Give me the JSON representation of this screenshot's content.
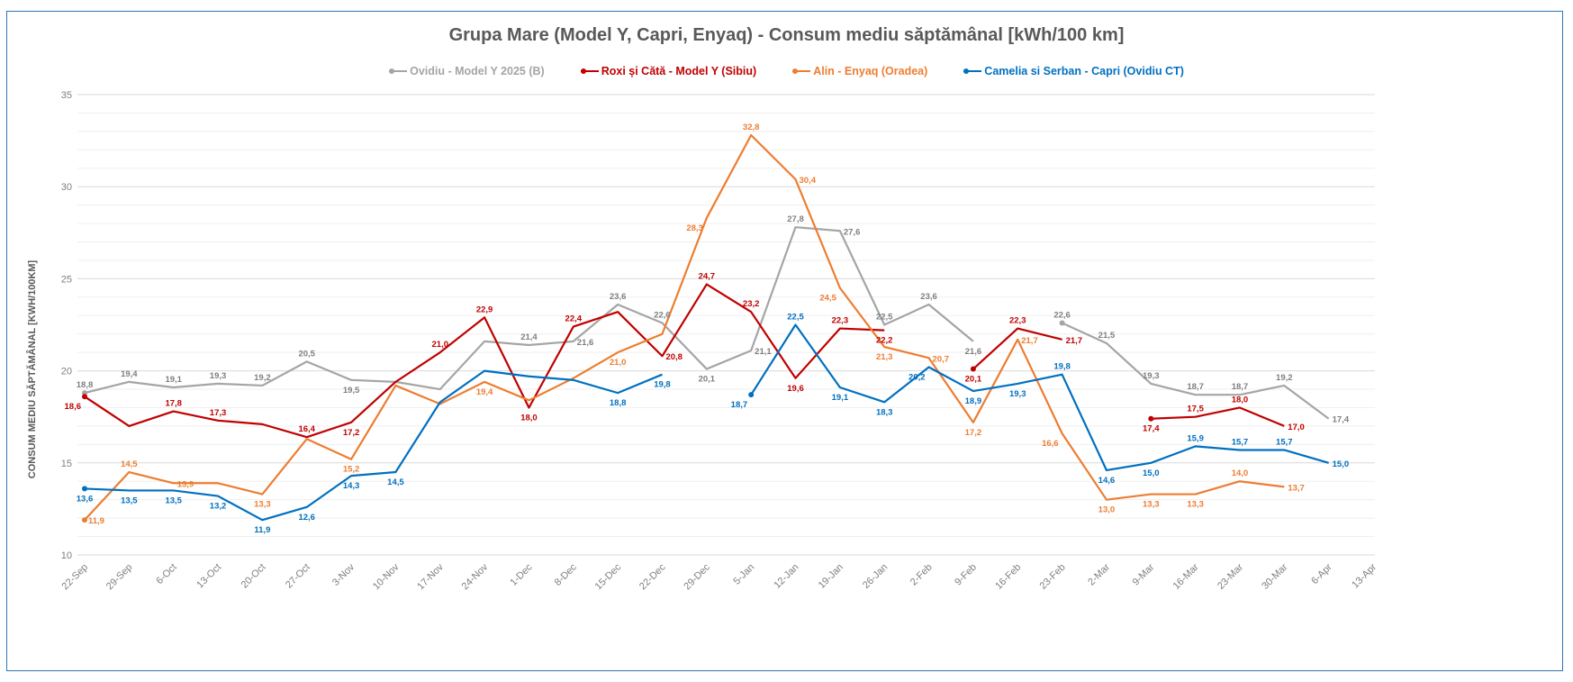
{
  "chart_data": {
    "type": "line",
    "title": "Grupa Mare (Model Y, Capri, Enyaq) - Consum mediu săptămânal [kWh/100 km]",
    "xlabel": "",
    "ylabel": "CONSUM MEDIU SĂPTĂMÂNAL [KWH/100KM]",
    "ylim": [
      10,
      35
    ],
    "yticks": [
      "10",
      "15",
      "20",
      "25",
      "30",
      "35"
    ],
    "ytick_values": [
      10,
      15,
      20,
      25,
      30,
      35
    ],
    "minor_grid_step": 1,
    "grid": true,
    "legend_position": "top",
    "categories": [
      "22-Sep",
      "29-Sep",
      "6-Oct",
      "13-Oct",
      "20-Oct",
      "27-Oct",
      "3-Nov",
      "10-Nov",
      "17-Nov",
      "24-Nov",
      "1-Dec",
      "8-Dec",
      "15-Dec",
      "22-Dec",
      "29-Dec",
      "5-Jan",
      "12-Jan",
      "19-Jan",
      "26-Jan",
      "2-Feb",
      "9-Feb",
      "16-Feb",
      "23-Feb",
      "2-Mar",
      "9-Mar",
      "16-Mar",
      "23-Mar",
      "30-Mar",
      "6-Apr",
      "13-Apr"
    ],
    "series": [
      {
        "name": "Ovidiu - Model Y 2025 (B)",
        "color": "#a5a5a5",
        "label_color": "#7f7f7f",
        "values": [
          18.8,
          19.4,
          19.1,
          19.3,
          19.2,
          20.5,
          19.5,
          19.4,
          19.0,
          21.6,
          21.4,
          21.6,
          23.6,
          22.6,
          20.1,
          21.1,
          27.8,
          27.6,
          22.5,
          23.6,
          21.6,
          null,
          22.6,
          21.5,
          19.3,
          18.7,
          18.7,
          19.2,
          17.4,
          null
        ],
        "labels": [
          "18,8",
          "19,4",
          "19,1",
          "19,3",
          "19,2",
          "20,5",
          "19,5",
          null,
          null,
          null,
          "21,4",
          "21,6",
          "23,6",
          "22,6",
          "20,1",
          "21,1",
          "27,8",
          "27,6",
          "22,5",
          "23,6",
          "21,6",
          null,
          "22,6",
          "21,5",
          "19,3",
          "18,7",
          "18,7",
          "19,2",
          "17,4",
          null
        ],
        "label_pos": [
          "above",
          "above",
          "above",
          "above",
          "above",
          "above",
          "below",
          null,
          null,
          null,
          "above",
          "right",
          "above",
          "above",
          "below",
          "right",
          "above",
          "right",
          "above",
          "above",
          "below",
          null,
          "above",
          "above",
          "above",
          "above",
          "above",
          "above",
          "right",
          null
        ]
      },
      {
        "name": "Roxi și Cătă - Model Y (Sibiu)",
        "color": "#c00000",
        "label_color": "#c00000",
        "values": [
          18.6,
          17.0,
          17.8,
          17.3,
          17.1,
          16.4,
          17.2,
          19.4,
          21.0,
          22.9,
          18.0,
          22.4,
          23.2,
          20.8,
          24.7,
          23.2,
          19.6,
          22.3,
          22.2,
          null,
          20.1,
          22.3,
          21.7,
          null,
          17.4,
          17.5,
          18.0,
          17.0,
          null,
          null
        ],
        "labels": [
          "18,6",
          null,
          "17,8",
          "17,3",
          null,
          "16,4",
          "17,2",
          null,
          "21,0",
          "22,9",
          "18,0",
          "22,4",
          null,
          "20,8",
          "24,7",
          "23,2",
          "19,6",
          "22,3",
          "22,2",
          null,
          "20,1",
          "22,3",
          "21,7",
          null,
          "17,4",
          "17,5",
          "18,0",
          "17,0",
          null,
          null
        ],
        "label_pos": [
          "left",
          null,
          "above",
          "above",
          null,
          "above",
          "below",
          null,
          "above",
          "above",
          "below",
          "above",
          null,
          "right",
          "above",
          "above",
          "below",
          "above",
          "below",
          null,
          "below",
          "above",
          "right",
          null,
          "below",
          "above",
          "above",
          "right",
          null,
          null
        ]
      },
      {
        "name": "Alin - Enyaq (Oradea)",
        "color": "#ed7d31",
        "label_color": "#ed7d31",
        "values": [
          11.9,
          14.5,
          13.9,
          13.9,
          13.3,
          16.3,
          15.2,
          19.2,
          18.2,
          19.4,
          18.4,
          19.6,
          21.0,
          22.0,
          28.3,
          32.8,
          30.4,
          24.5,
          21.3,
          20.7,
          17.2,
          21.7,
          16.6,
          13.0,
          13.3,
          13.3,
          14.0,
          13.7,
          null,
          null
        ],
        "labels": [
          "11,9",
          "14,5",
          "13,9",
          null,
          "13,3",
          null,
          "15,2",
          null,
          null,
          "19,4",
          null,
          null,
          "21,0",
          null,
          "28,3",
          "32,8",
          "30,4",
          "24,5",
          "21,3",
          "20,7",
          "17,2",
          "21,7",
          "16,6",
          "13,0",
          "13,3",
          "13,3",
          "14,0",
          "13,7",
          null,
          null
        ],
        "label_pos": [
          "right",
          "above",
          "right",
          null,
          "below",
          null,
          "below",
          null,
          null,
          "below",
          null,
          null,
          "below",
          null,
          "left",
          "above",
          "right",
          "left",
          "below",
          "right",
          "below",
          "right",
          "left",
          "below",
          "below",
          "below",
          "above",
          "right",
          null,
          null
        ]
      },
      {
        "name": "Camelia si Serban - Capri (Ovidiu CT)",
        "color": "#0070c0",
        "label_color": "#0070c0",
        "values": [
          13.6,
          13.5,
          13.5,
          13.2,
          11.9,
          12.6,
          14.3,
          14.5,
          18.3,
          20.0,
          19.7,
          19.5,
          18.8,
          19.8,
          null,
          18.7,
          22.5,
          19.1,
          18.3,
          20.2,
          18.9,
          19.3,
          19.8,
          14.6,
          15.0,
          15.9,
          15.7,
          15.7,
          15.0,
          null
        ],
        "labels": [
          "13,6",
          "13,5",
          "13,5",
          "13,2",
          "11,9",
          "12,6",
          "14,3",
          "14,5",
          null,
          null,
          null,
          null,
          "18,8",
          "19,8",
          null,
          "18,7",
          "22,5",
          "19,1",
          "18,3",
          "20,2",
          "18,9",
          "19,3",
          "19,8",
          "14,6",
          "15,0",
          "15,9",
          "15,7",
          "15,7",
          "15,0",
          null
        ],
        "label_pos": [
          "below",
          "below",
          "below",
          "below",
          "below",
          "below",
          "below",
          "below",
          null,
          null,
          null,
          null,
          "below",
          "below",
          null,
          "left",
          "above",
          "below",
          "below",
          "left",
          "below",
          "below",
          "above",
          "below",
          "below",
          "above",
          "above",
          "above",
          "right",
          null
        ]
      }
    ]
  }
}
